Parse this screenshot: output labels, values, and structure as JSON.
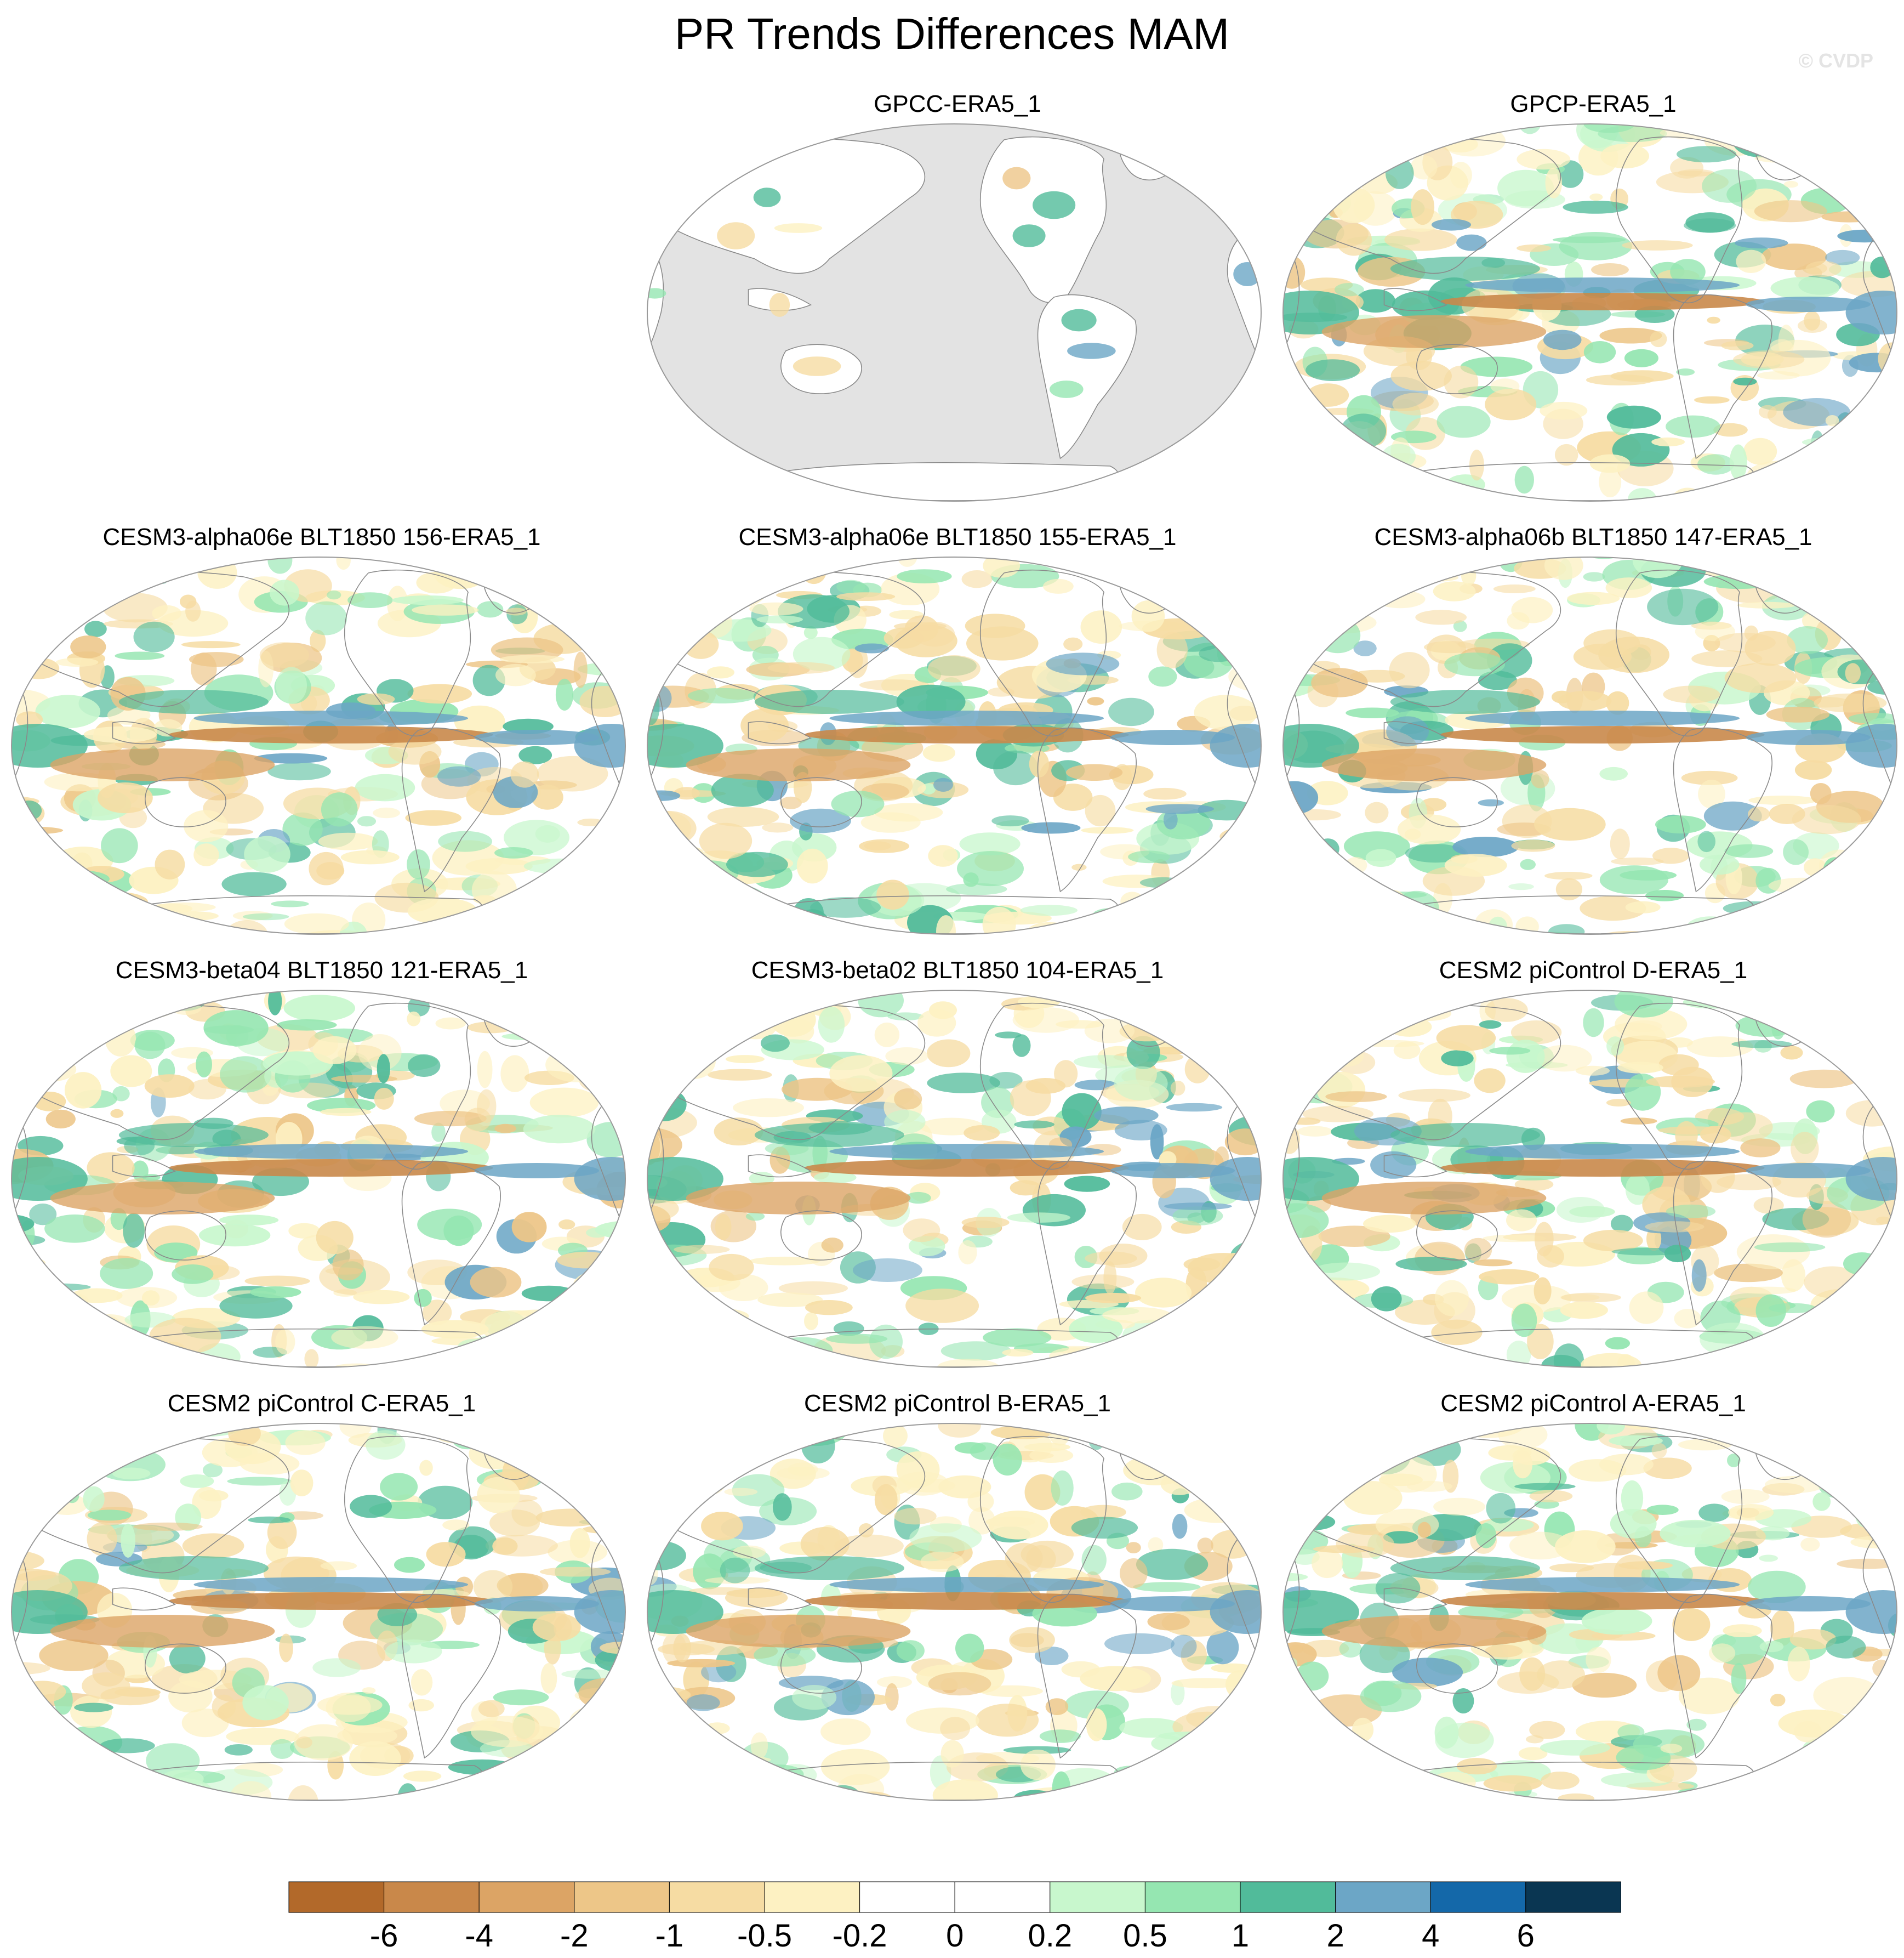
{
  "title": "PR Trends Differences MAM",
  "watermark": "© CVDP",
  "colors": {
    "land_mask": "#e3e3e3",
    "coastline": "#8a8a8a",
    "outline": "#9a9a9a"
  },
  "panels": [
    {
      "title": "GPCC-ERA5_1",
      "row": 0,
      "col": 1,
      "mask_ocean": true
    },
    {
      "title": "GPCP-ERA5_1",
      "row": 0,
      "col": 2
    },
    {
      "title": "CESM3-alpha06e BLT1850 156-ERA5_1",
      "row": 1,
      "col": 0
    },
    {
      "title": "CESM3-alpha06e BLT1850 155-ERA5_1",
      "row": 1,
      "col": 1
    },
    {
      "title": "CESM3-alpha06b BLT1850 147-ERA5_1",
      "row": 1,
      "col": 2
    },
    {
      "title": "CESM3-beta04 BLT1850 121-ERA5_1",
      "row": 2,
      "col": 0
    },
    {
      "title": "CESM3-beta02 BLT1850 104-ERA5_1",
      "row": 2,
      "col": 1
    },
    {
      "title": "CESM2 piControl D-ERA5_1",
      "row": 2,
      "col": 2
    },
    {
      "title": "CESM2 piControl C-ERA5_1",
      "row": 3,
      "col": 0
    },
    {
      "title": "CESM2 piControl B-ERA5_1",
      "row": 3,
      "col": 1
    },
    {
      "title": "CESM2 piControl A-ERA5_1",
      "row": 3,
      "col": 2
    }
  ],
  "colorbar": {
    "labels": [
      "-6",
      "-4",
      "-2",
      "-1",
      "-0.5",
      "-0.2",
      "0",
      "0.2",
      "0.5",
      "1",
      "2",
      "4",
      "6"
    ],
    "colors": [
      "#b2692a",
      "#c9884a",
      "#dca465",
      "#edc688",
      "#f6dca3",
      "#fdf1c2",
      "#ffffff",
      "#ffffff",
      "#c8f7cd",
      "#95e6b1",
      "#51bb9a",
      "#6ca6c6",
      "#1468a9",
      "#0a3652"
    ]
  }
}
